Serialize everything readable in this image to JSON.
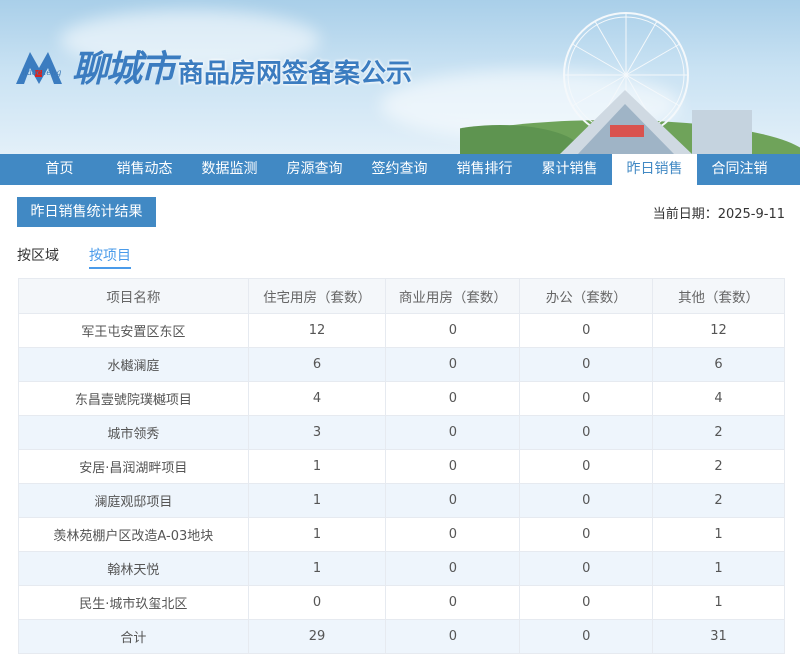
{
  "header": {
    "logo_sub": "liaocheng",
    "city": "聊城市",
    "title": "商品房网签备案公示"
  },
  "nav": {
    "items": [
      "首页",
      "销售动态",
      "数据监测",
      "房源查询",
      "签约查询",
      "销售排行",
      "累计销售",
      "昨日销售",
      "合同注销"
    ],
    "active": "昨日销售"
  },
  "toolbar": {
    "result_label": "昨日销售统计结果",
    "date_label": "当前日期：2025-9-11"
  },
  "tabs": {
    "items": [
      "按区域",
      "按项目"
    ],
    "active": "按项目"
  },
  "table": {
    "columns": [
      "项目名称",
      "住宅用房（套数）",
      "商业用房（套数）",
      "办公（套数）",
      "其他（套数）"
    ],
    "rows": [
      [
        "军王屯安置区东区",
        "12",
        "0",
        "0",
        "12"
      ],
      [
        "水樾澜庭",
        "6",
        "0",
        "0",
        "6"
      ],
      [
        "东昌壹號院璞樾项目",
        "4",
        "0",
        "0",
        "4"
      ],
      [
        "城市领秀",
        "3",
        "0",
        "0",
        "2"
      ],
      [
        "安居·昌润湖畔项目",
        "1",
        "0",
        "0",
        "2"
      ],
      [
        "澜庭观邸项目",
        "1",
        "0",
        "0",
        "2"
      ],
      [
        "羡林苑棚户区改造A-03地块",
        "1",
        "0",
        "0",
        "1"
      ],
      [
        "翰林天悦",
        "1",
        "0",
        "0",
        "1"
      ],
      [
        "民生·城市玖玺北区",
        "0",
        "0",
        "0",
        "1"
      ],
      [
        "合计",
        "29",
        "0",
        "0",
        "31"
      ]
    ]
  },
  "colors": {
    "accent": "#4189c4",
    "tab_active": "#4a9bea",
    "row_alt": "#eef5fc"
  }
}
